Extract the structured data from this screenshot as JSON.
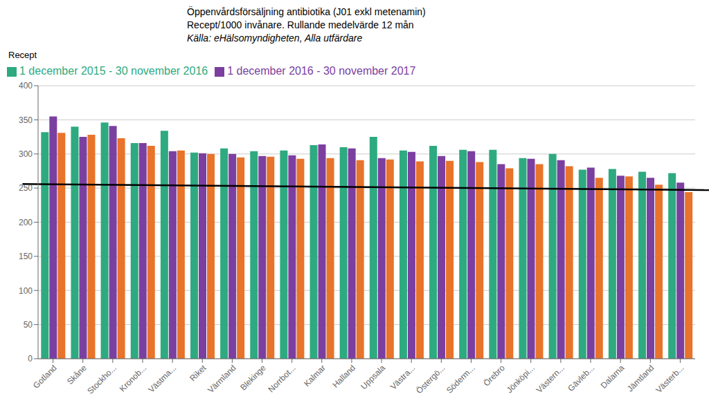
{
  "chart_data": {
    "type": "bar",
    "title": "Öppenvårdsförsäljning antibiotika (J01 exkl metenamin)",
    "subtitle": "Recept/1000 invånare. Rullande medelvärde 12 mån",
    "annotations": [
      "Källa: eHälsomyndigheten, Alla utfärdare"
    ],
    "y_label": "Recept",
    "categories": [
      "Gotland",
      "Skåne",
      "Stockho...",
      "Kronob...",
      "Västma...",
      "Riket",
      "Värmland",
      "Blekinge",
      "Norrbot...",
      "Kalmar",
      "Halland",
      "Uppsala",
      "Västra...",
      "Östergö...",
      "Söderm...",
      "Örebro",
      "Jönköpi...",
      "Västern...",
      "Gävleb...",
      "Dalarna",
      "Jämtland",
      "Västerb..."
    ],
    "series": [
      {
        "name": "1 december 2015 - 30 november 2016",
        "color": "#2EAA80",
        "values": [
          332,
          340,
          346,
          316,
          334,
          302,
          308,
          304,
          305,
          313,
          310,
          325,
          305,
          312,
          306,
          306,
          294,
          300,
          277,
          278,
          274,
          272
        ]
      },
      {
        "name": "1 december 2016 - 30 november 2017",
        "color": "#7B3FA0",
        "values": [
          355,
          325,
          341,
          316,
          304,
          301,
          300,
          297,
          298,
          314,
          308,
          294,
          303,
          297,
          304,
          285,
          293,
          291,
          280,
          268,
          265,
          258
        ]
      },
      {
        "color": "#E8732A",
        "values": [
          331,
          328,
          323,
          312,
          305,
          300,
          295,
          296,
          293,
          294,
          291,
          292,
          289,
          290,
          288,
          279,
          285,
          282,
          265,
          267,
          255,
          244
        ]
      }
    ],
    "reference_line": {
      "start": 256,
      "end": 247,
      "color": "#000000"
    },
    "ylim": [
      0,
      400
    ],
    "yticks": [
      0,
      50,
      100,
      150,
      200,
      250,
      300,
      350,
      400
    ],
    "grid": true,
    "legend": "upper left"
  }
}
